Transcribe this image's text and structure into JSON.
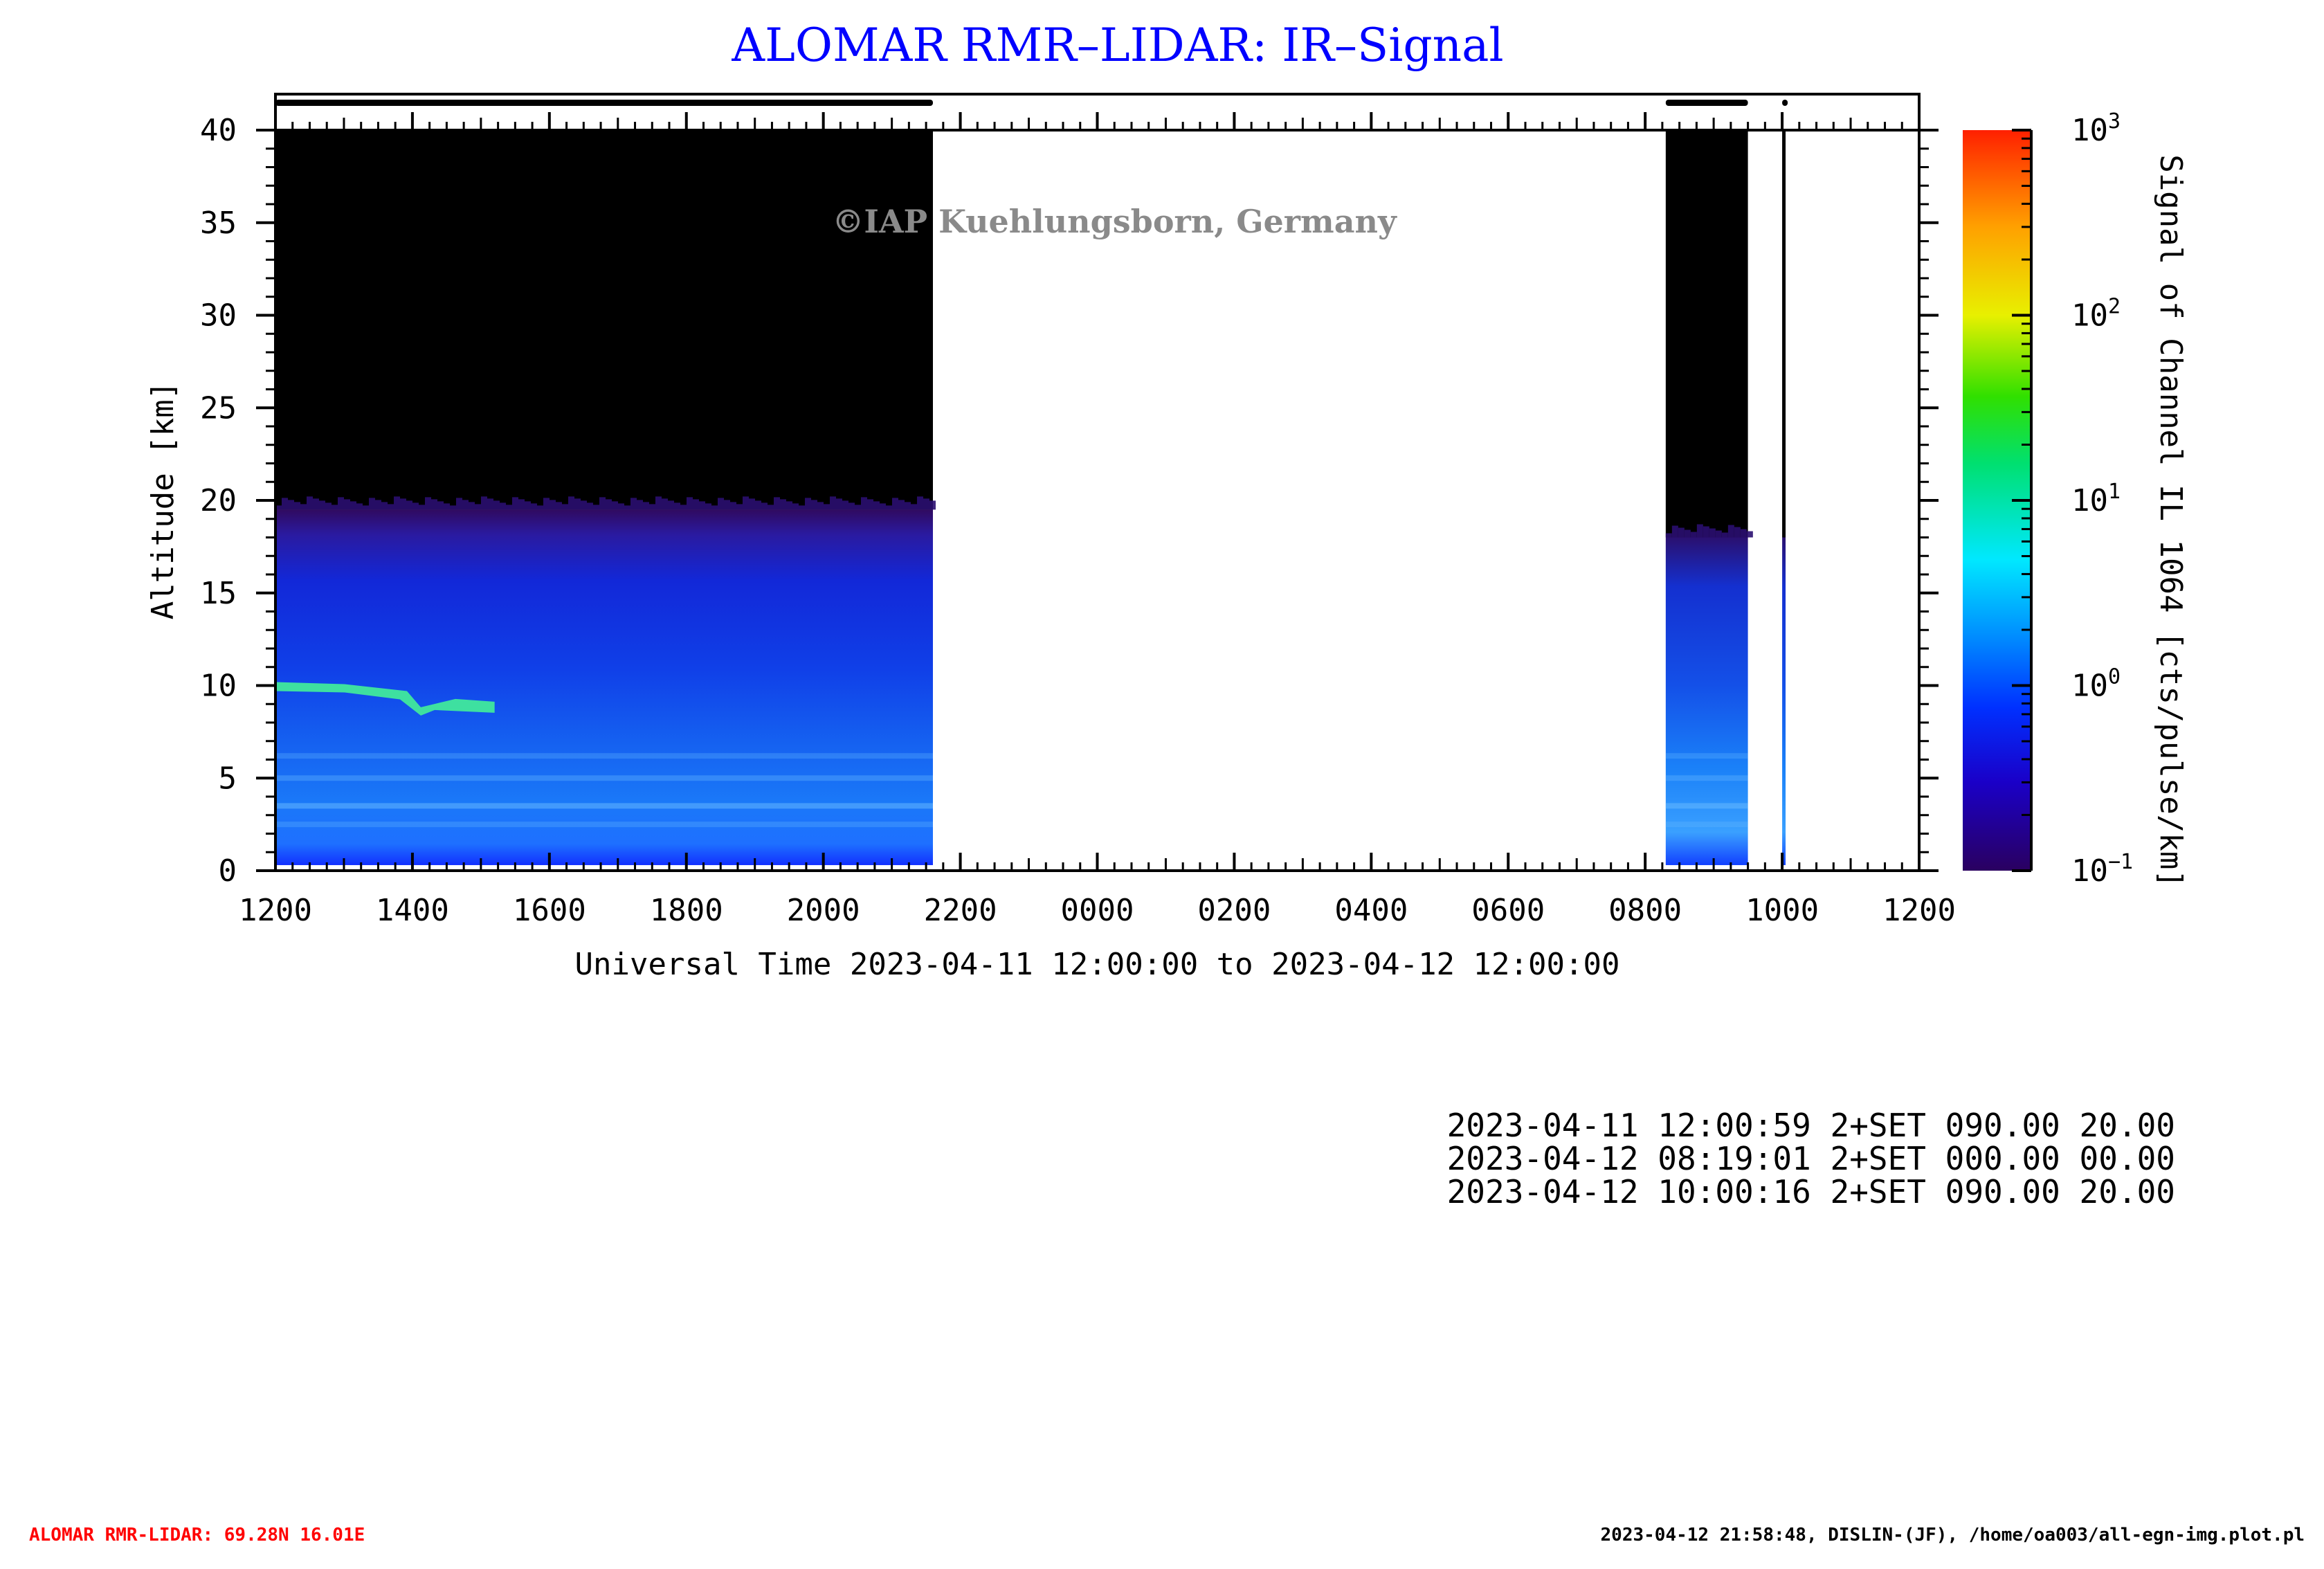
{
  "title": "ALOMAR RMR–LIDAR: IR–Signal",
  "watermark": "©IAP Kuehlungsborn, Germany",
  "chart_data": {
    "type": "heatmap",
    "xlabel": "Universal Time 2023-04-11 12:00:00 to 2023-04-12 12:00:00",
    "ylabel": "Altitude [km]",
    "x_range_hours": [
      12,
      36
    ],
    "x_ticks": [
      "1200",
      "1400",
      "1600",
      "1800",
      "2000",
      "2200",
      "0000",
      "0200",
      "0400",
      "0600",
      "0800",
      "1000",
      "1200"
    ],
    "ylim": [
      0,
      40
    ],
    "y_ticks": [
      "0",
      "5",
      "10",
      "15",
      "20",
      "25",
      "30",
      "35",
      "40"
    ],
    "colorbar": {
      "label": "Signal of Channel IL 1064 [cts/pulse/km]",
      "scale": "log",
      "range": [
        0.1,
        1000
      ],
      "ticks": [
        {
          "base": "10",
          "exp": "3",
          "value": 1000
        },
        {
          "base": "10",
          "exp": "2",
          "value": 100
        },
        {
          "base": "10",
          "exp": "1",
          "value": 10
        },
        {
          "base": "10",
          "exp": "0",
          "value": 1
        },
        {
          "base": "10",
          "exp": "−1",
          "value": 0.1
        }
      ],
      "colors": [
        "#2a0060",
        "#1a00c8",
        "#0030ff",
        "#0090ff",
        "#00e8ff",
        "#00e070",
        "#30e000",
        "#e8f000",
        "#ffa000",
        "#ff2000"
      ]
    },
    "measurement_periods": [
      {
        "start_hour": 12.0,
        "end_hour": 21.6,
        "signal_top_km": 19.5
      },
      {
        "start_hour": 32.3,
        "end_hour": 33.5,
        "signal_top_km": 18.0
      },
      {
        "start_hour": 34.0,
        "end_hour": 34.05,
        "signal_top_km": 18.0
      }
    ],
    "cloud_feature": {
      "start_hour": 12.0,
      "end_hour": 15.2,
      "altitude_km": [
        10.0,
        9.2
      ],
      "signal": 3
    }
  },
  "info_lines": [
    "2023-04-11 12:00:59 2+SET 090.00 20.00",
    "2023-04-12 08:19:01 2+SET 000.00 00.00",
    "2023-04-12 10:00:16 2+SET 090.00 20.00"
  ],
  "footer": {
    "left": "ALOMAR RMR-LIDAR: 69.28N 16.01E",
    "right": "2023-04-12 21:58:48, DISLIN-(JF), /home/oa003/all-egn-img.plot.pl"
  }
}
